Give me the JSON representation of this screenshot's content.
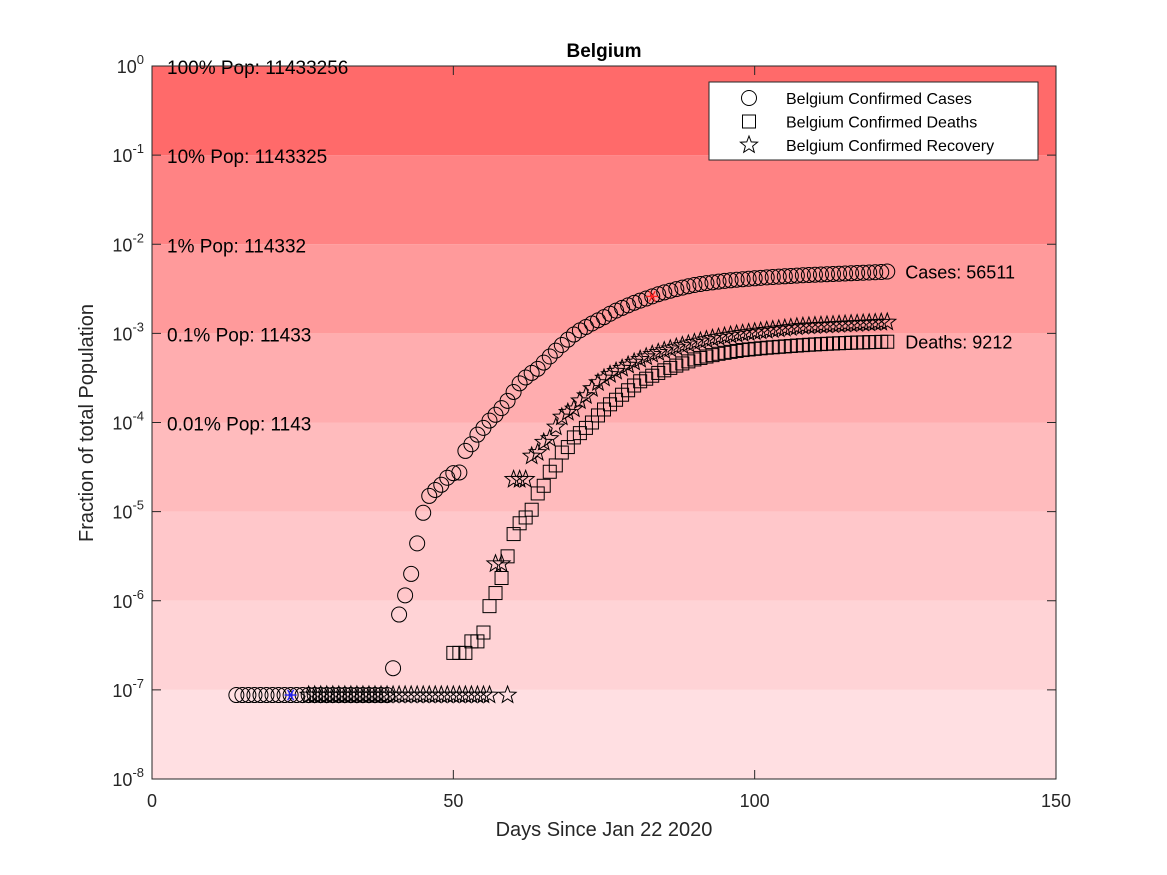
{
  "chart_data": {
    "type": "scatter",
    "title": "Belgium",
    "xlabel": "Days Since Jan 22 2020",
    "ylabel": "Fraction of total Population",
    "xlim": [
      0,
      150
    ],
    "ylim": [
      1e-08,
      1
    ],
    "y_scale": "log",
    "x_ticks": [
      "0",
      "50",
      "100",
      "150"
    ],
    "y_ticks": [
      "10",
      "10",
      "10",
      "10",
      "10",
      "10",
      "10",
      "10",
      "10"
    ],
    "y_tick_exponents": [
      "-8",
      "-7",
      "-6",
      "-5",
      "-4",
      "-3",
      "-2",
      "-1",
      "0"
    ],
    "grid": false,
    "legend_position": "top-right",
    "legend": [
      "Belgium Confirmed Cases",
      "Belgium Confirmed Deaths",
      "Belgium Confirmed Recovery"
    ],
    "band_colors": [
      "#ffdfe2",
      "#ffd3d6",
      "#ffc7ca",
      "#ffbbbd",
      "#ffadaf",
      "#ff9a9b",
      "#ff8384",
      "#ff6a6a"
    ],
    "population_labels": [
      {
        "text": "100% Pop: 11433256",
        "y": 1
      },
      {
        "text": "10% Pop: 1143325",
        "y": 0.1
      },
      {
        "text": "1% Pop: 114332",
        "y": 0.01
      },
      {
        "text": "0.1% Pop: 11433",
        "y": 0.001
      },
      {
        "text": "0.01% Pop: 1143",
        "y": 0.0001
      }
    ],
    "end_labels": [
      {
        "text": "Cases: 56511",
        "x": 123,
        "y": 0.00494
      },
      {
        "text": "Deaths: 9212",
        "x": 123,
        "y": 0.000806
      }
    ],
    "highlight_points": [
      {
        "series": "Belgium Confirmed Cases",
        "x": 23,
        "y": 8.75e-08,
        "color": "#2020ff"
      },
      {
        "series": "Belgium Confirmed Cases",
        "x": 83,
        "y": 0.0026,
        "color": "#ff2020"
      }
    ],
    "series": [
      {
        "name": "Belgium Confirmed Cases",
        "marker": "circle",
        "x": [
          14,
          15,
          16,
          17,
          18,
          19,
          20,
          21,
          22,
          23,
          24,
          25,
          26,
          27,
          28,
          29,
          30,
          31,
          32,
          33,
          34,
          35,
          36,
          37,
          38,
          39,
          40,
          41,
          42,
          43,
          44,
          45,
          46,
          47,
          48,
          49,
          50,
          51,
          52,
          53,
          54,
          55,
          56,
          57,
          58,
          59,
          60,
          61,
          62,
          63,
          64,
          65,
          66,
          67,
          68,
          69,
          70,
          71,
          72,
          73,
          74,
          75,
          76,
          77,
          78,
          79,
          80,
          81,
          82,
          83,
          84,
          85,
          86,
          87,
          88,
          89,
          90,
          91,
          92,
          93,
          94,
          95,
          96,
          97,
          98,
          99,
          100,
          101,
          102,
          103,
          104,
          105,
          106,
          107,
          108,
          109,
          110,
          111,
          112,
          113,
          114,
          115,
          116,
          117,
          118,
          119,
          120,
          121,
          122
        ],
        "y": [
          8.75e-08,
          8.75e-08,
          8.75e-08,
          8.75e-08,
          8.75e-08,
          8.75e-08,
          8.75e-08,
          8.75e-08,
          8.75e-08,
          8.75e-08,
          8.75e-08,
          8.75e-08,
          8.75e-08,
          8.75e-08,
          8.75e-08,
          8.75e-08,
          8.75e-08,
          8.75e-08,
          8.75e-08,
          8.75e-08,
          8.75e-08,
          8.75e-08,
          8.75e-08,
          8.75e-08,
          8.75e-08,
          8.75e-08,
          1.75e-07,
          7e-07,
          1.15e-06,
          2e-06,
          4.4e-06,
          9.7e-06,
          1.5e-05,
          1.75e-05,
          2e-05,
          2.4e-05,
          2.7e-05,
          2.75e-05,
          4.8e-05,
          5.7e-05,
          7.3e-05,
          8.7e-05,
          0.000105,
          0.000122,
          0.000145,
          0.000175,
          0.00022,
          0.000275,
          0.00032,
          0.00036,
          0.0004,
          0.00047,
          0.00055,
          0.00064,
          0.00074,
          0.00085,
          0.00097,
          0.00108,
          0.00118,
          0.00129,
          0.0014,
          0.00152,
          0.00166,
          0.0018,
          0.00193,
          0.00206,
          0.0022,
          0.00233,
          0.00246,
          0.0026,
          0.00275,
          0.00288,
          0.00301,
          0.00314,
          0.00326,
          0.00338,
          0.00349,
          0.00358,
          0.00366,
          0.00374,
          0.00381,
          0.00388,
          0.00394,
          0.004,
          0.00405,
          0.0041,
          0.00415,
          0.0042,
          0.00425,
          0.00429,
          0.00433,
          0.00437,
          0.00441,
          0.00445,
          0.00449,
          0.00452,
          0.00455,
          0.00458,
          0.00461,
          0.00464,
          0.00467,
          0.0047,
          0.00473,
          0.00476,
          0.00479,
          0.00482,
          0.00485,
          0.00488,
          0.00494
        ]
      },
      {
        "name": "Belgium Confirmed Deaths",
        "marker": "square",
        "x": [
          50,
          51,
          52,
          53,
          54,
          55,
          56,
          57,
          58,
          59,
          60,
          61,
          62,
          63,
          64,
          65,
          66,
          67,
          68,
          69,
          70,
          71,
          72,
          73,
          74,
          75,
          76,
          77,
          78,
          79,
          80,
          81,
          82,
          83,
          84,
          85,
          86,
          87,
          88,
          89,
          90,
          91,
          92,
          93,
          94,
          95,
          96,
          97,
          98,
          99,
          100,
          101,
          102,
          103,
          104,
          105,
          106,
          107,
          108,
          109,
          110,
          111,
          112,
          113,
          114,
          115,
          116,
          117,
          118,
          119,
          120,
          121,
          122
        ],
        "y": [
          2.6e-07,
          2.6e-07,
          2.6e-07,
          3.5e-07,
          3.5e-07,
          4.4e-07,
          8.7e-07,
          1.22e-06,
          1.8e-06,
          3.15e-06,
          5.6e-06,
          7.4e-06,
          8.6e-06,
          1.05e-05,
          1.6e-05,
          1.95e-05,
          2.8e-05,
          3.3e-05,
          4.6e-05,
          5.3e-05,
          6.8e-05,
          7.6e-05,
          8.7e-05,
          0.0001,
          0.00012,
          0.00014,
          0.00016,
          0.00018,
          0.000205,
          0.00023,
          0.00026,
          0.00029,
          0.00031,
          0.000335,
          0.00036,
          0.000385,
          0.00041,
          0.000435,
          0.00046,
          0.000485,
          0.00051,
          0.00053,
          0.00055,
          0.00057,
          0.00059,
          0.000605,
          0.00062,
          0.000635,
          0.00065,
          0.00066,
          0.00067,
          0.00068,
          0.00069,
          0.000698,
          0.000706,
          0.000714,
          0.000722,
          0.00073,
          0.000738,
          0.000745,
          0.000752,
          0.000758,
          0.000764,
          0.00077,
          0.000775,
          0.00078,
          0.000785,
          0.000789,
          0.000793,
          0.000797,
          0.0008,
          0.000803,
          0.000806
        ]
      },
      {
        "name": "Belgium Confirmed Recovery",
        "marker": "star",
        "x": [
          26,
          27,
          28,
          29,
          30,
          31,
          32,
          33,
          34,
          35,
          36,
          37,
          38,
          39,
          40,
          41,
          42,
          43,
          44,
          45,
          46,
          47,
          48,
          49,
          50,
          51,
          52,
          53,
          54,
          55,
          56,
          57,
          58,
          59,
          60,
          61,
          62,
          63,
          64,
          65,
          66,
          67,
          68,
          69,
          70,
          71,
          72,
          73,
          74,
          75,
          76,
          77,
          78,
          79,
          80,
          81,
          82,
          83,
          84,
          85,
          86,
          87,
          88,
          89,
          90,
          91,
          92,
          93,
          94,
          95,
          96,
          97,
          98,
          99,
          100,
          101,
          102,
          103,
          104,
          105,
          106,
          107,
          108,
          109,
          110,
          111,
          112,
          113,
          114,
          115,
          116,
          117,
          118,
          119,
          120,
          121,
          122
        ],
        "y": [
          8.75e-08,
          8.75e-08,
          8.75e-08,
          8.75e-08,
          8.75e-08,
          8.75e-08,
          8.75e-08,
          8.75e-08,
          8.75e-08,
          8.75e-08,
          8.75e-08,
          8.75e-08,
          8.75e-08,
          8.75e-08,
          8.75e-08,
          8.75e-08,
          8.75e-08,
          8.75e-08,
          8.75e-08,
          8.75e-08,
          8.75e-08,
          8.75e-08,
          8.75e-08,
          8.75e-08,
          8.75e-08,
          8.75e-08,
          8.75e-08,
          8.75e-08,
          8.75e-08,
          8.75e-08,
          8.75e-08,
          2.6e-06,
          2.6e-06,
          8.75e-08,
          2.3e-05,
          2.3e-05,
          2.3e-05,
          4.2e-05,
          4.6e-05,
          6e-05,
          6.6e-05,
          8.9e-05,
          0.000115,
          0.00013,
          0.000142,
          0.000175,
          0.0002,
          0.00024,
          0.00028,
          0.000315,
          0.000345,
          0.000375,
          0.000405,
          0.00044,
          0.000475,
          0.00051,
          0.000545,
          0.00058,
          0.00061,
          0.00064,
          0.00067,
          0.0007,
          0.00073,
          0.00076,
          0.00079,
          0.00082,
          0.00085,
          0.00088,
          0.000905,
          0.00093,
          0.000955,
          0.00098,
          0.001,
          0.00102,
          0.00104,
          0.00106,
          0.00108,
          0.0011,
          0.00112,
          0.00114,
          0.00116,
          0.00118,
          0.0012,
          0.00121,
          0.00122,
          0.00123,
          0.00124,
          0.00125,
          0.00126,
          0.00127,
          0.00128,
          0.00129,
          0.0013,
          0.00131,
          0.00132,
          0.00133,
          0.00134
        ]
      }
    ]
  }
}
